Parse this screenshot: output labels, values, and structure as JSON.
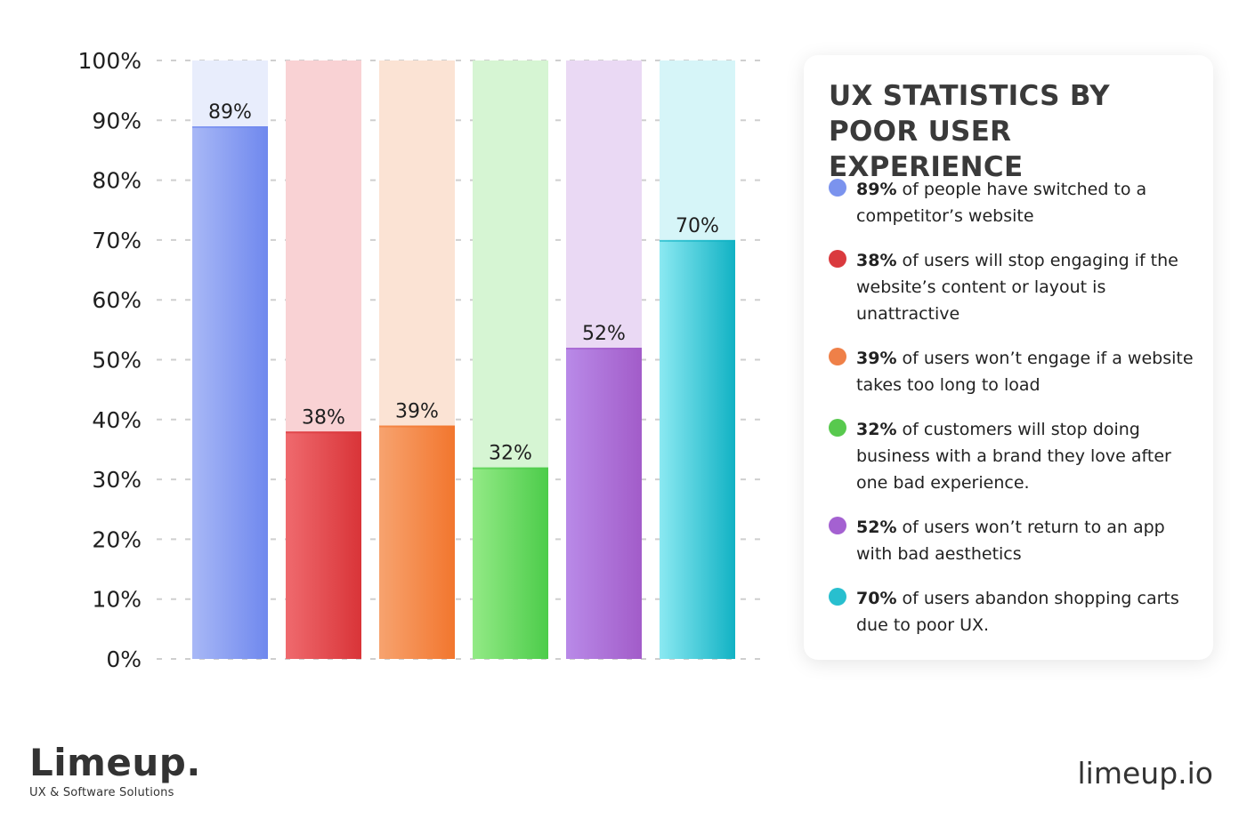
{
  "chart_data": {
    "type": "bar",
    "categories": [
      "",
      "",
      "",
      "",
      "",
      ""
    ],
    "values": [
      89,
      38,
      39,
      32,
      52,
      70
    ],
    "value_labels": [
      "89%",
      "38%",
      "39%",
      "32%",
      "52%",
      "70%"
    ],
    "ylim": [
      0,
      100
    ],
    "yticks": [
      "0%",
      "10%",
      "20%",
      "30%",
      "40%",
      "50%",
      "60%",
      "70%",
      "80%",
      "90%",
      "100%"
    ],
    "grid": true,
    "colors": [
      {
        "top": "#a8b8f6",
        "bottom": "#6f88ee",
        "track": "#e8edfc"
      },
      {
        "top": "#ef6a6e",
        "bottom": "#d93438",
        "track": "#f9d2d4"
      },
      {
        "top": "#f7a36f",
        "bottom": "#f2762e",
        "track": "#fbe3d4"
      },
      {
        "top": "#93ea86",
        "bottom": "#4ccc4a",
        "track": "#d6f5d3"
      },
      {
        "top": "#b98ae8",
        "bottom": "#a25cc9",
        "track": "#ead9f4"
      },
      {
        "top": "#8be9f2",
        "bottom": "#11b2c4",
        "track": "#d6f5f8"
      }
    ]
  },
  "card": {
    "title": "UX STATISTICS BY POOR USER EXPERIENCE",
    "items": [
      {
        "value": "89%",
        "text": " of people have switched to a competitor’s website",
        "color": "#7b93ee"
      },
      {
        "value": "38%",
        "text": " of users will stop engaging if the website’s content or layout is unattractive",
        "color": "#da3a3e"
      },
      {
        "value": "39%",
        "text": " of users won’t engage if a website takes too long to load",
        "color": "#ef8048"
      },
      {
        "value": "32%",
        "text": " of customers will stop doing business with a brand they love after one bad experience.",
        "color": "#58c94e"
      },
      {
        "value": "52%",
        "text": " of users won’t return to an app with bad aesthetics",
        "color": "#a461d1"
      },
      {
        "value": "70%",
        "text": " of users abandon shopping carts due to poor UX.",
        "color": "#28bfcf"
      }
    ]
  },
  "brand": {
    "name": "Limeup.",
    "tagline": "UX & Software Solutions"
  },
  "site": "limeup.io"
}
